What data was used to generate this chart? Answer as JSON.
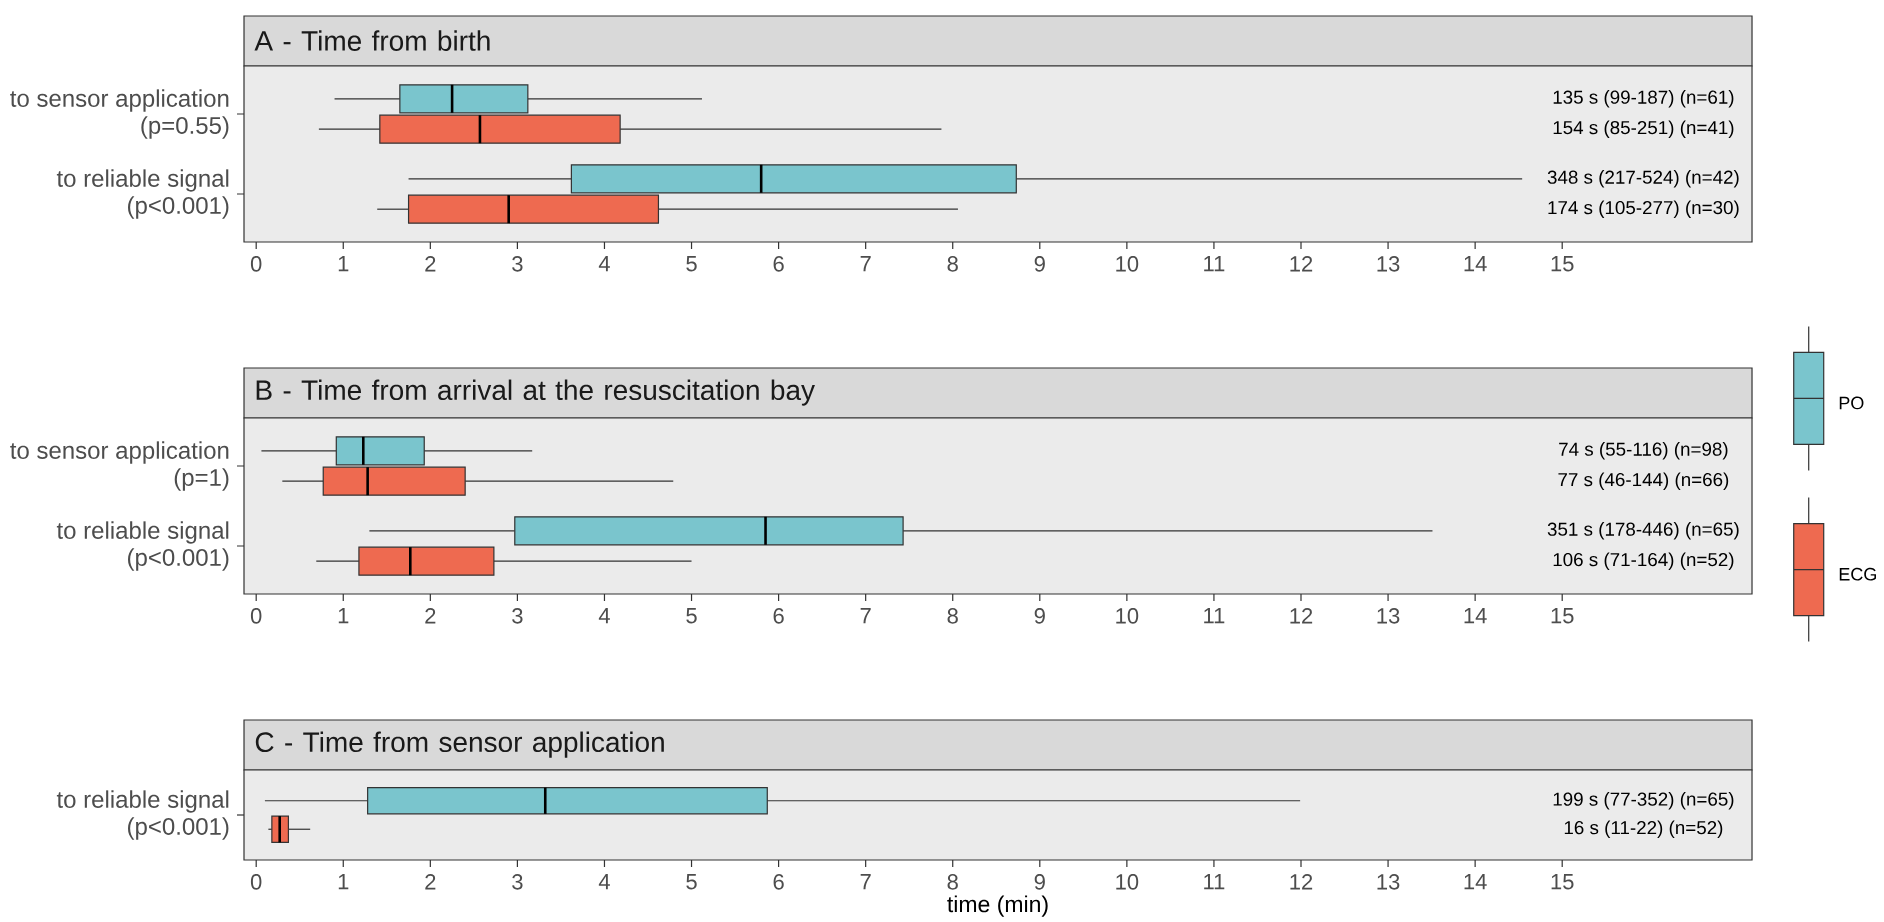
{
  "chart_data": [
    {
      "type": "box",
      "orientation": "horizontal",
      "title": "A - Time from birth",
      "categories": [
        "to sensor application (p=0.55)",
        "to reliable signal (p<0.001)"
      ],
      "series": [
        {
          "color": "#7ac5cd",
          "boxes": [
            {
              "low": 0.9,
              "q1": 1.65,
              "median": 2.25,
              "q3": 3.12,
              "high": 5.12
            },
            {
              "low": 1.75,
              "q1": 3.62,
              "median": 5.8,
              "q3": 8.73,
              "high": 14.54
            }
          ],
          "value_labels": [
            "135 s (99-187) (n=61)",
            "348 s (217-524) (n=42)"
          ]
        },
        {
          "color": "#ee6a50",
          "boxes": [
            {
              "low": 0.72,
              "q1": 1.42,
              "median": 2.57,
              "q3": 4.18,
              "high": 7.87
            },
            {
              "low": 1.39,
              "q1": 1.75,
              "median": 2.9,
              "q3": 4.62,
              "high": 8.06
            }
          ],
          "value_labels": [
            "154 s (85-251) (n=41)",
            "174 s (105-277) (n=30)"
          ]
        }
      ],
      "xlim": [
        -0.14,
        17.18
      ],
      "xticks": [
        0,
        1,
        2,
        3,
        4,
        5,
        6,
        7,
        8,
        9,
        10,
        11,
        12,
        13,
        14,
        15
      ]
    },
    {
      "type": "box",
      "orientation": "horizontal",
      "title": "B - Time from arrival at the resuscitation bay",
      "categories": [
        "to sensor application (p=1)",
        "to reliable signal (p<0.001)"
      ],
      "series": [
        {
          "name": "PO",
          "color": "#7ac5cd",
          "boxes": [
            {
              "low": 0.06,
              "q1": 0.92,
              "median": 1.23,
              "q3": 1.93,
              "high": 3.17
            },
            {
              "low": 1.3,
              "q1": 2.97,
              "median": 5.85,
              "q3": 7.43,
              "high": 13.51
            }
          ],
          "value_labels": [
            "74 s (55-116) (n=98)",
            "351 s (178-446) (n=65)"
          ]
        },
        {
          "name": "ECG",
          "color": "#ee6a50",
          "boxes": [
            {
              "low": 0.3,
              "q1": 0.77,
              "median": 1.28,
              "q3": 2.4,
              "high": 4.79
            },
            {
              "low": 0.69,
              "q1": 1.18,
              "median": 1.77,
              "q3": 2.73,
              "high": 5.0
            }
          ],
          "value_labels": [
            "77 s (46-144) (n=66)",
            "106 s (71-164) (n=52)"
          ]
        }
      ],
      "xlim": [
        -0.14,
        17.18
      ],
      "xticks": [
        0,
        1,
        2,
        3,
        4,
        5,
        6,
        7,
        8,
        9,
        10,
        11,
        12,
        13,
        14,
        15
      ],
      "legend": "right"
    },
    {
      "type": "box",
      "orientation": "horizontal",
      "title": "C - Time from sensor application",
      "xlabel": "time (min)",
      "categories": [
        "to reliable signal (p<0.001)"
      ],
      "series": [
        {
          "color": "#7ac5cd",
          "boxes": [
            {
              "low": 0.1,
              "q1": 1.28,
              "median": 3.32,
              "q3": 5.87,
              "high": 11.99
            }
          ],
          "value_labels": [
            "199 s (77-352) (n=65)"
          ]
        },
        {
          "color": "#ee6a50",
          "boxes": [
            {
              "low": 0.14,
              "q1": 0.18,
              "median": 0.27,
              "q3": 0.37,
              "high": 0.62
            }
          ],
          "value_labels": [
            "16 s (11-22) (n=52)"
          ]
        }
      ],
      "xlim": [
        -0.14,
        17.18
      ],
      "xticks": [
        0,
        1,
        2,
        3,
        4,
        5,
        6,
        7,
        8,
        9,
        10,
        11,
        12,
        13,
        14,
        15
      ]
    }
  ]
}
